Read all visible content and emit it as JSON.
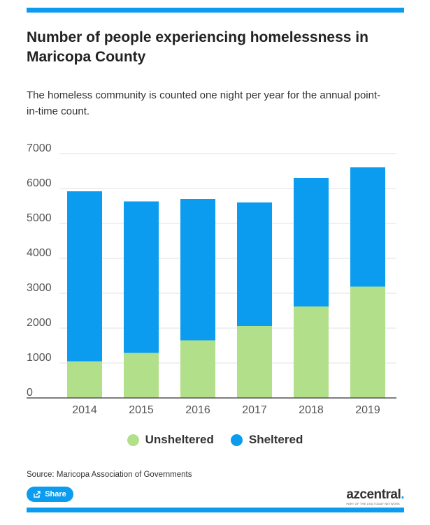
{
  "header": {
    "title": "Number of people experiencing homelessness in Maricopa County",
    "subtitle": "The homeless community is counted one night per year for the annual point-in-time count."
  },
  "chart_data": {
    "type": "bar",
    "stacked": true,
    "categories": [
      "2014",
      "2015",
      "2016",
      "2017",
      "2018",
      "2019"
    ],
    "series": [
      {
        "name": "Unsheltered",
        "color": "#b2df8a",
        "values": [
          1050,
          1290,
          1650,
          2060,
          2620,
          3190
        ]
      },
      {
        "name": "Sheltered",
        "color": "#0b9cf0",
        "values": [
          4870,
          4340,
          4050,
          3540,
          3680,
          3420
        ]
      }
    ],
    "ylim": [
      0,
      7000
    ],
    "yticks": [
      0,
      1000,
      2000,
      3000,
      4000,
      5000,
      6000,
      7000
    ],
    "grid": true,
    "legend_position": "bottom",
    "xlabel": "",
    "ylabel": ""
  },
  "legend": {
    "items": [
      {
        "label": "Unsheltered",
        "color": "#b2df8a"
      },
      {
        "label": "Sheltered",
        "color": "#0b9cf0"
      }
    ]
  },
  "footer": {
    "source": "Source: Maricopa Association of Governments",
    "share_label": "Share",
    "logo_text": "azcentral",
    "logo_dot": ".",
    "logo_sub": "PART OF THE USA TODAY NETWORK"
  }
}
